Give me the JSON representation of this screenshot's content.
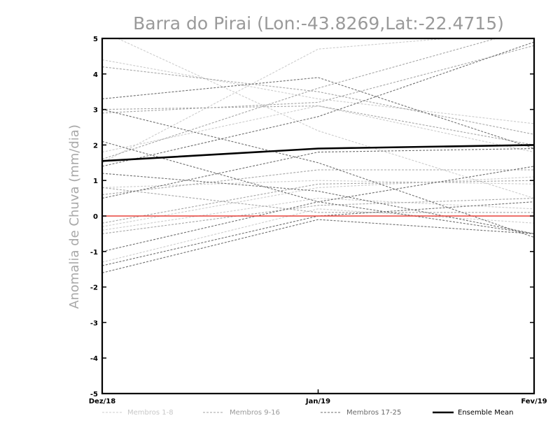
{
  "chart_data": {
    "type": "line",
    "title": "Barra do Pirai (Lon:-43.8269,Lat:-22.4715)",
    "ylabel": "Anomalia de Chuva (mm/dia)",
    "xlabel": "",
    "categories": [
      "Dez/18",
      "Jan/19",
      "Fev/19"
    ],
    "ylim": [
      -5,
      5
    ],
    "yticks": [
      -5,
      -4,
      -3,
      -2,
      -1,
      0,
      1,
      2,
      3,
      4,
      5
    ],
    "ytick_labels": [
      "-5",
      "-4",
      "-3",
      "-2",
      "-1",
      "0",
      "1",
      "2",
      "3",
      "4",
      "5"
    ],
    "zero_line_color": "#e8413a",
    "groups": [
      {
        "name": "Membros 1-8",
        "color": "#cccccc",
        "series": [
          [
            4.4,
            3.3,
            2.6
          ],
          [
            1.8,
            3.1,
            1.8
          ],
          [
            -0.3,
            0.8,
            1.1
          ],
          [
            0.8,
            1.0,
            0.9
          ],
          [
            -0.4,
            0.5,
            0.2
          ],
          [
            1.5,
            4.7,
            5.2
          ],
          [
            -1.3,
            0.2,
            -0.2
          ],
          [
            5.2,
            2.4,
            0.5
          ]
        ]
      },
      {
        "name": "Membros 9-16",
        "color": "#a6a6a6",
        "series": [
          [
            3.0,
            3.1,
            2.0
          ],
          [
            4.2,
            3.5,
            2.3
          ],
          [
            0.6,
            1.3,
            1.3
          ],
          [
            0.8,
            0.1,
            0.1
          ],
          [
            -0.5,
            0.3,
            0.5
          ],
          [
            1.6,
            3.6,
            5.3
          ],
          [
            2.9,
            3.2,
            4.8
          ],
          [
            -0.2,
            0.9,
            1.0
          ]
        ]
      },
      {
        "name": "Membros 17-25",
        "color": "#6e6e6e",
        "series": [
          [
            3.3,
            3.9,
            1.9
          ],
          [
            2.1,
            0.4,
            -0.5
          ],
          [
            1.4,
            2.8,
            4.9
          ],
          [
            0.5,
            1.8,
            1.9
          ],
          [
            -1.0,
            0.4,
            1.4
          ],
          [
            -1.4,
            0.0,
            0.4
          ],
          [
            -1.6,
            -0.1,
            -0.5
          ],
          [
            1.2,
            0.7,
            -0.5
          ],
          [
            3.0,
            1.5,
            -0.6
          ]
        ]
      }
    ],
    "ensemble_mean": {
      "name": "Ensemble Mean",
      "color": "#000000",
      "values": [
        1.55,
        1.9,
        2.0
      ]
    }
  }
}
